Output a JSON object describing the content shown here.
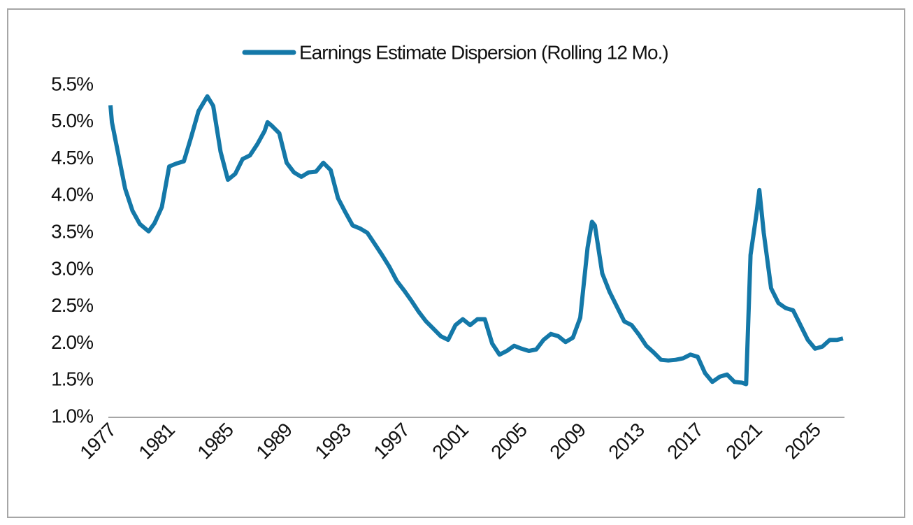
{
  "chart_data": {
    "type": "line",
    "series": [
      {
        "name": "Earnings Estimate Dispersion (Rolling 12 Mo.)",
        "color": "#1478a8",
        "x": [
          1977.0,
          1977.1,
          1977.5,
          1978.0,
          1978.5,
          1979.0,
          1979.6,
          1980.0,
          1980.5,
          1981.0,
          1981.5,
          1982.0,
          1982.5,
          1983.0,
          1983.6,
          1984.0,
          1984.5,
          1985.0,
          1985.5,
          1986.0,
          1986.5,
          1987.0,
          1987.5,
          1987.7,
          1988.0,
          1988.5,
          1989.0,
          1989.5,
          1990.0,
          1990.5,
          1991.0,
          1991.5,
          1992.0,
          1992.5,
          1993.0,
          1993.5,
          1994.0,
          1994.5,
          1995.0,
          1995.5,
          1996.0,
          1996.5,
          1997.0,
          1997.5,
          1998.0,
          1998.5,
          1999.0,
          1999.5,
          2000.0,
          2000.5,
          2001.0,
          2001.5,
          2002.0,
          2002.5,
          2003.0,
          2003.5,
          2004.0,
          2004.5,
          2005.0,
          2005.5,
          2006.0,
          2006.5,
          2007.0,
          2007.5,
          2008.0,
          2008.5,
          2009.0,
          2009.5,
          2009.8,
          2010.0,
          2010.5,
          2011.0,
          2011.5,
          2012.0,
          2012.5,
          2013.0,
          2013.5,
          2014.0,
          2014.5,
          2015.0,
          2015.5,
          2016.0,
          2016.5,
          2017.0,
          2017.5,
          2018.0,
          2018.5,
          2019.0,
          2019.5,
          2020.0,
          2020.3,
          2020.6,
          2021.0,
          2021.2,
          2021.5,
          2022.0,
          2022.5,
          2023.0,
          2023.5,
          2024.0,
          2024.5,
          2025.0,
          2025.5,
          2026.0,
          2026.5,
          2026.9
        ],
        "values": [
          5.23,
          5.0,
          4.6,
          4.1,
          3.8,
          3.62,
          3.52,
          3.63,
          3.85,
          4.4,
          4.44,
          4.47,
          4.8,
          5.15,
          5.35,
          5.22,
          4.6,
          4.22,
          4.3,
          4.5,
          4.55,
          4.7,
          4.88,
          5.0,
          4.95,
          4.85,
          4.45,
          4.32,
          4.26,
          4.32,
          4.33,
          4.45,
          4.35,
          3.97,
          3.78,
          3.6,
          3.56,
          3.5,
          3.35,
          3.2,
          3.04,
          2.85,
          2.72,
          2.58,
          2.43,
          2.3,
          2.2,
          2.1,
          2.05,
          2.25,
          2.33,
          2.25,
          2.33,
          2.33,
          2.0,
          1.85,
          1.9,
          1.97,
          1.93,
          1.9,
          1.92,
          2.05,
          2.13,
          2.1,
          2.02,
          2.08,
          2.35,
          3.3,
          3.65,
          3.6,
          2.95,
          2.7,
          2.5,
          2.3,
          2.25,
          2.12,
          1.97,
          1.88,
          1.78,
          1.77,
          1.78,
          1.8,
          1.85,
          1.82,
          1.6,
          1.48,
          1.55,
          1.58,
          1.48,
          1.47,
          1.45,
          3.2,
          3.75,
          4.08,
          3.5,
          2.75,
          2.55,
          2.48,
          2.45,
          2.25,
          2.05,
          1.93,
          1.96,
          2.05,
          2.05,
          2.07
        ]
      }
    ],
    "xlim": [
      1977,
      2027
    ],
    "xticks": [
      1977,
      1981,
      1985,
      1989,
      1993,
      1997,
      2001,
      2005,
      2009,
      2013,
      2017,
      2021,
      2025
    ],
    "ylim": [
      1.0,
      5.5
    ],
    "yticks": [
      {
        "value": 1.0,
        "label": "1.0%"
      },
      {
        "value": 1.5,
        "label": "1.5%"
      },
      {
        "value": 2.0,
        "label": "2.0%"
      },
      {
        "value": 2.5,
        "label": "2.5%"
      },
      {
        "value": 3.0,
        "label": "3.0%"
      },
      {
        "value": 3.5,
        "label": "3.5%"
      },
      {
        "value": 4.0,
        "label": "4.0%"
      },
      {
        "value": 4.5,
        "label": "4.5%"
      },
      {
        "value": 5.0,
        "label": "5.0%"
      },
      {
        "value": 5.5,
        "label": "5.5%"
      }
    ],
    "grid": false,
    "legend": "top"
  }
}
